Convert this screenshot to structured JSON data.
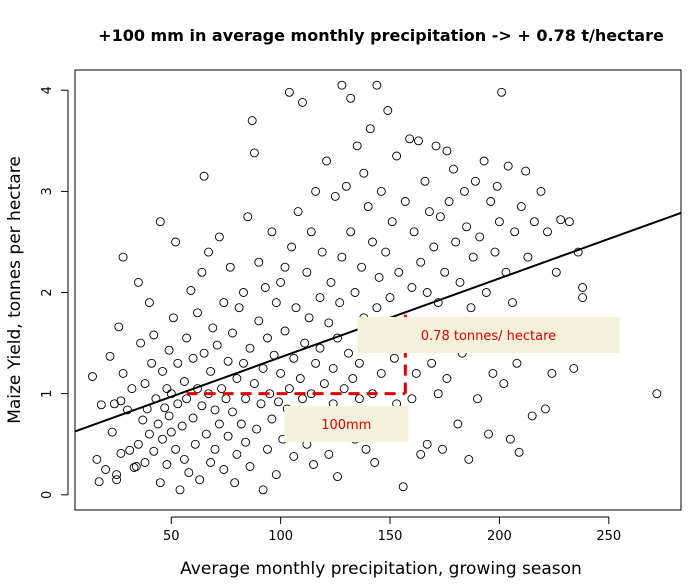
{
  "chart_data": {
    "type": "scatter",
    "title": "+100 mm in average monthly precipitation -> + 0.78 t/hectare",
    "xlabel": "Average monthly precipitation, growing season",
    "ylabel": "Maize Yield, tonnes per hectare",
    "xlim": [
      6,
      283
    ],
    "ylim": [
      -0.15,
      4.2
    ],
    "xticks": [
      50,
      100,
      150,
      200,
      250
    ],
    "yticks": [
      0,
      1,
      2,
      3,
      4
    ],
    "grid": false,
    "regression_line": {
      "intercept": 0.58,
      "slope": 0.0078
    },
    "annotations": [
      {
        "label": "0.78 tonnes/ hectare",
        "anchor_x": 195,
        "anchor_y": 1.58
      },
      {
        "label": "100mm",
        "anchor_x": 130,
        "anchor_y": 0.7
      }
    ],
    "guide_segments": [
      {
        "style": "dashed",
        "color": "#e00000",
        "from": [
          57,
          1.0
        ],
        "to": [
          157,
          1.0
        ]
      },
      {
        "style": "dashed",
        "color": "#e00000",
        "from": [
          157,
          1.0
        ],
        "to": [
          157,
          1.78
        ]
      }
    ],
    "series": [
      {
        "points": [
          [
            14,
            1.17
          ],
          [
            16,
            0.35
          ],
          [
            17,
            0.13
          ],
          [
            18,
            0.89
          ],
          [
            20,
            0.25
          ],
          [
            22,
            1.37
          ],
          [
            23,
            0.62
          ],
          [
            24,
            0.9
          ],
          [
            25,
            0.2
          ],
          [
            25,
            0.15
          ],
          [
            26,
            1.66
          ],
          [
            27,
            0.93
          ],
          [
            27,
            0.41
          ],
          [
            28,
            2.35
          ],
          [
            28,
            1.2
          ],
          [
            30,
            0.84
          ],
          [
            31,
            0.44
          ],
          [
            32,
            1.05
          ],
          [
            33,
            0.27
          ],
          [
            34,
            0.28
          ],
          [
            35,
            0.5
          ],
          [
            35,
            2.1
          ],
          [
            36,
            1.5
          ],
          [
            37,
            0.74
          ],
          [
            38,
            1.1
          ],
          [
            38,
            0.32
          ],
          [
            39,
            0.85
          ],
          [
            40,
            1.9
          ],
          [
            40,
            0.6
          ],
          [
            41,
            1.3
          ],
          [
            42,
            0.43
          ],
          [
            42,
            1.58
          ],
          [
            43,
            0.95
          ],
          [
            44,
            0.7
          ],
          [
            45,
            2.7
          ],
          [
            45,
            0.12
          ],
          [
            46,
            1.22
          ],
          [
            46,
            0.55
          ],
          [
            47,
            0.86
          ],
          [
            48,
            1.05
          ],
          [
            48,
            0.3
          ],
          [
            49,
            1.43
          ],
          [
            49,
            0.78
          ],
          [
            50,
            0.62
          ],
          [
            50,
            1.0
          ],
          [
            51,
            1.75
          ],
          [
            52,
            0.45
          ],
          [
            52,
            2.5
          ],
          [
            53,
            1.3
          ],
          [
            53,
            0.9
          ],
          [
            54,
            0.05
          ],
          [
            55,
            0.68
          ],
          [
            56,
            1.12
          ],
          [
            56,
            0.35
          ],
          [
            57,
            1.55
          ],
          [
            57,
            0.95
          ],
          [
            58,
            0.22
          ],
          [
            59,
            2.02
          ],
          [
            60,
            0.76
          ],
          [
            60,
            1.35
          ],
          [
            61,
            0.5
          ],
          [
            62,
            1.05
          ],
          [
            62,
            1.8
          ],
          [
            63,
            0.15
          ],
          [
            64,
            0.88
          ],
          [
            64,
            2.2
          ],
          [
            65,
            3.15
          ],
          [
            65,
            1.4
          ],
          [
            66,
            0.6
          ],
          [
            67,
            1.0
          ],
          [
            67,
            2.4
          ],
          [
            68,
            0.32
          ],
          [
            68,
            1.22
          ],
          [
            69,
            1.65
          ],
          [
            70,
            0.84
          ],
          [
            70,
            0.45
          ],
          [
            71,
            1.48
          ],
          [
            72,
            0.7
          ],
          [
            72,
            2.55
          ],
          [
            73,
            1.05
          ],
          [
            74,
            0.25
          ],
          [
            74,
            1.9
          ],
          [
            75,
            0.95
          ],
          [
            76,
            1.32
          ],
          [
            76,
            0.58
          ],
          [
            77,
            2.25
          ],
          [
            78,
            0.82
          ],
          [
            78,
            1.6
          ],
          [
            79,
            0.12
          ],
          [
            80,
            1.15
          ],
          [
            80,
            0.4
          ],
          [
            81,
            1.85
          ],
          [
            82,
            0.7
          ],
          [
            83,
            1.3
          ],
          [
            83,
            2.0
          ],
          [
            84,
            0.95
          ],
          [
            84,
            0.52
          ],
          [
            85,
            2.75
          ],
          [
            86,
            1.45
          ],
          [
            86,
            0.28
          ],
          [
            87,
            3.7
          ],
          [
            88,
            1.1
          ],
          [
            88,
            3.38
          ],
          [
            89,
            0.65
          ],
          [
            90,
            1.72
          ],
          [
            90,
            2.3
          ],
          [
            91,
            0.9
          ],
          [
            92,
            1.25
          ],
          [
            92,
            0.05
          ],
          [
            93,
            2.05
          ],
          [
            94,
            0.45
          ],
          [
            94,
            1.55
          ],
          [
            95,
            1.0
          ],
          [
            96,
            2.6
          ],
          [
            96,
            0.75
          ],
          [
            97,
            1.38
          ],
          [
            98,
            1.9
          ],
          [
            98,
            0.2
          ],
          [
            99,
            0.92
          ],
          [
            100,
            2.1
          ],
          [
            100,
            1.2
          ],
          [
            101,
            0.55
          ],
          [
            102,
            2.25
          ],
          [
            102,
            1.62
          ],
          [
            103,
            0.85
          ],
          [
            104,
            3.98
          ],
          [
            104,
            1.05
          ],
          [
            105,
            2.45
          ],
          [
            106,
            0.38
          ],
          [
            106,
            1.35
          ],
          [
            107,
            1.85
          ],
          [
            108,
            0.7
          ],
          [
            108,
            2.8
          ],
          [
            109,
            1.15
          ],
          [
            110,
            3.88
          ],
          [
            110,
            0.95
          ],
          [
            111,
            1.5
          ],
          [
            112,
            2.2
          ],
          [
            112,
            0.5
          ],
          [
            113,
            1.75
          ],
          [
            114,
            1.0
          ],
          [
            114,
            2.6
          ],
          [
            115,
            0.3
          ],
          [
            116,
            1.3
          ],
          [
            116,
            3.0
          ],
          [
            117,
            0.8
          ],
          [
            118,
            1.95
          ],
          [
            118,
            1.45
          ],
          [
            119,
            2.4
          ],
          [
            120,
            0.6
          ],
          [
            120,
            1.1
          ],
          [
            121,
            3.3
          ],
          [
            122,
            1.7
          ],
          [
            122,
            0.4
          ],
          [
            123,
            2.1
          ],
          [
            124,
            1.25
          ],
          [
            124,
            0.9
          ],
          [
            125,
            2.95
          ],
          [
            126,
            1.55
          ],
          [
            126,
            0.18
          ],
          [
            127,
            1.9
          ],
          [
            128,
            4.05
          ],
          [
            128,
            2.35
          ],
          [
            129,
            1.05
          ],
          [
            130,
            3.05
          ],
          [
            130,
            0.7
          ],
          [
            131,
            1.4
          ],
          [
            132,
            2.6
          ],
          [
            132,
            3.92
          ],
          [
            133,
            1.15
          ],
          [
            134,
            0.55
          ],
          [
            134,
            2.0
          ],
          [
            135,
            3.45
          ],
          [
            136,
            1.3
          ],
          [
            136,
            0.95
          ],
          [
            137,
            2.25
          ],
          [
            138,
            1.75
          ],
          [
            138,
            3.18
          ],
          [
            139,
            0.45
          ],
          [
            140,
            2.85
          ],
          [
            140,
            1.5
          ],
          [
            141,
            3.62
          ],
          [
            142,
            1.0
          ],
          [
            142,
            2.5
          ],
          [
            143,
            0.32
          ],
          [
            144,
            1.85
          ],
          [
            144,
            4.05
          ],
          [
            145,
            2.15
          ],
          [
            146,
            1.2
          ],
          [
            146,
            3.0
          ],
          [
            147,
            0.8
          ],
          [
            148,
            2.4
          ],
          [
            148,
            1.6
          ],
          [
            149,
            3.8
          ],
          [
            150,
            0.6
          ],
          [
            150,
            1.95
          ],
          [
            151,
            2.7
          ],
          [
            152,
            1.35
          ],
          [
            153,
            3.35
          ],
          [
            153,
            0.9
          ],
          [
            154,
            2.2
          ],
          [
            155,
            1.7
          ],
          [
            156,
            0.08
          ],
          [
            157,
            2.9
          ],
          [
            158,
            1.45
          ],
          [
            159,
            3.52
          ],
          [
            160,
            2.05
          ],
          [
            160,
            0.95
          ],
          [
            161,
            2.6
          ],
          [
            162,
            1.2
          ],
          [
            163,
            3.5
          ],
          [
            164,
            2.3
          ],
          [
            164,
            0.4
          ],
          [
            165,
            1.55
          ],
          [
            166,
            3.1
          ],
          [
            167,
            2.0
          ],
          [
            167,
            0.5
          ],
          [
            168,
            2.8
          ],
          [
            169,
            1.3
          ],
          [
            170,
            2.45
          ],
          [
            171,
            3.45
          ],
          [
            172,
            1.0
          ],
          [
            172,
            1.9
          ],
          [
            173,
            2.75
          ],
          [
            174,
            0.45
          ],
          [
            175,
            2.2
          ],
          [
            176,
            1.15
          ],
          [
            176,
            3.4
          ],
          [
            177,
            2.9
          ],
          [
            178,
            1.6
          ],
          [
            179,
            3.22
          ],
          [
            180,
            2.5
          ],
          [
            181,
            0.7
          ],
          [
            182,
            2.1
          ],
          [
            183,
            1.4
          ],
          [
            184,
            3.0
          ],
          [
            185,
            2.65
          ],
          [
            186,
            0.35
          ],
          [
            187,
            1.85
          ],
          [
            188,
            2.35
          ],
          [
            189,
            3.1
          ],
          [
            190,
            0.95
          ],
          [
            191,
            2.55
          ],
          [
            192,
            1.65
          ],
          [
            193,
            3.3
          ],
          [
            194,
            2.0
          ],
          [
            195,
            0.6
          ],
          [
            196,
            2.9
          ],
          [
            197,
            1.2
          ],
          [
            198,
            2.4
          ],
          [
            199,
            3.05
          ],
          [
            200,
            2.7
          ],
          [
            201,
            3.98
          ],
          [
            202,
            1.1
          ],
          [
            203,
            2.2
          ],
          [
            204,
            3.25
          ],
          [
            205,
            0.55
          ],
          [
            206,
            1.9
          ],
          [
            207,
            2.6
          ],
          [
            208,
            1.3
          ],
          [
            209,
            0.42
          ],
          [
            210,
            2.85
          ],
          [
            211,
            1.7
          ],
          [
            212,
            3.2
          ],
          [
            213,
            2.35
          ],
          [
            215,
            0.78
          ],
          [
            216,
            2.7
          ],
          [
            217,
            1.5
          ],
          [
            219,
            3.0
          ],
          [
            221,
            0.85
          ],
          [
            222,
            2.6
          ],
          [
            224,
            1.2
          ],
          [
            226,
            2.2
          ],
          [
            228,
            2.72
          ],
          [
            230,
            1.65
          ],
          [
            232,
            2.7
          ],
          [
            234,
            1.25
          ],
          [
            236,
            2.4
          ],
          [
            238,
            1.95
          ],
          [
            238,
            2.05
          ],
          [
            272,
            1.0
          ]
        ]
      }
    ]
  }
}
